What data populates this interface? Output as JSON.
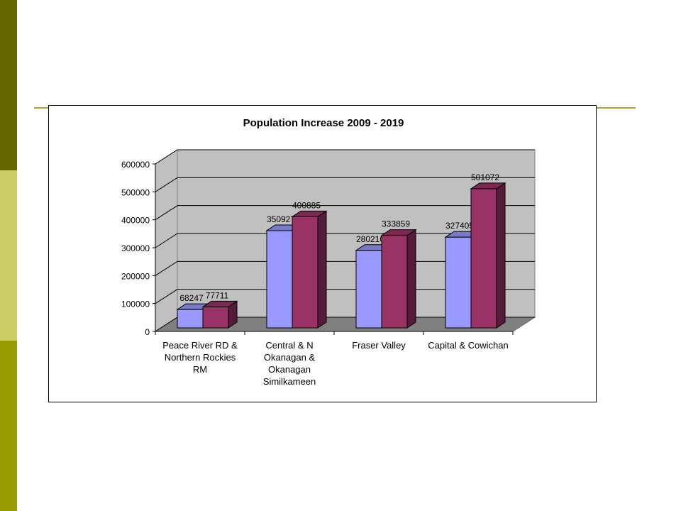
{
  "slide": {
    "colors": {
      "sidebar_dark": "#666600",
      "sidebar_light": "#cccc66",
      "sidebar_mid": "#999900",
      "rule": "#a6a62e"
    }
  },
  "chart_data": {
    "type": "bar",
    "title": "Population Increase 2009 - 2019",
    "xlabel": "",
    "ylabel": "",
    "ylim": [
      0,
      600000
    ],
    "yticks": [
      0,
      100000,
      200000,
      300000,
      400000,
      500000,
      600000
    ],
    "categories": [
      [
        "Peace River RD &",
        "Northern Rockies",
        "RM"
      ],
      [
        "Central & N",
        "Okanagan &",
        "Okanagan",
        "Similkameen"
      ],
      [
        "Fraser Valley"
      ],
      [
        "Capital & Cowichan"
      ]
    ],
    "series": [
      {
        "values": [
          68247,
          350927,
          280210,
          327405
        ],
        "color": "#9999ff"
      },
      {
        "values": [
          77711,
          400885,
          333859,
          501072
        ],
        "color": "#993366"
      }
    ],
    "three_d": true,
    "grid": true,
    "legend": "none"
  }
}
